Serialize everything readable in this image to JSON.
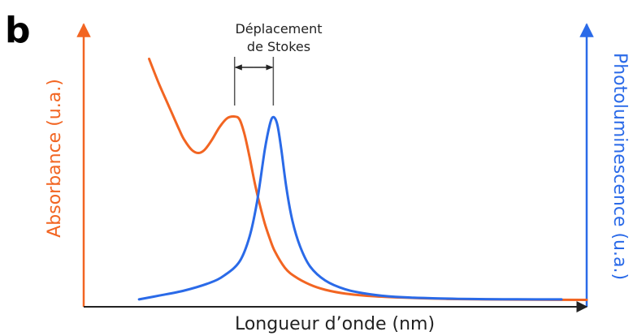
{
  "chart_data": {
    "type": "line",
    "panel_label": "b",
    "xlabel": "Longueur d’onde (nm)",
    "ylabel_left": "Absorbance (u.a.)",
    "ylabel_right": "Photoluminescence (u.a.)",
    "annotation": {
      "line1": "Déplacement",
      "line2": "de Stokes"
    },
    "xlim": [
      0,
      100
    ],
    "ylim": [
      0,
      100
    ],
    "grid": false,
    "colors": {
      "absorbance": "#f26522",
      "photoluminescence": "#2a6ae8",
      "axis_x": "#222222"
    },
    "series": [
      {
        "key": "absorbance",
        "x": [
          13,
          15,
          17,
          19,
          20,
          21.5,
          22.8,
          24,
          25.5,
          27,
          28.5,
          30,
          31,
          32,
          33,
          34,
          35,
          36,
          37,
          38,
          40,
          42,
          45,
          48,
          52,
          58,
          65,
          72,
          80,
          90,
          100
        ],
        "y": [
          96,
          86,
          77,
          68,
          64,
          60,
          58.8,
          60,
          64,
          69,
          72.5,
          73.2,
          72,
          66,
          57,
          47,
          38.5,
          31,
          25,
          20,
          13.5,
          10,
          6.8,
          4.8,
          3.3,
          2.2,
          1.6,
          1.2,
          1.0,
          0.9,
          0.8
        ]
      },
      {
        "key": "photoluminescence",
        "x": [
          11,
          15,
          20,
          25,
          28,
          31,
          33,
          34.5,
          36,
          37,
          37.7,
          38.5,
          39.3,
          40.3,
          41.5,
          43,
          45,
          48,
          52,
          57,
          62,
          70,
          80,
          90,
          95
        ],
        "y": [
          1.0,
          2.5,
          4.5,
          7.5,
          10.5,
          16,
          26,
          40,
          60,
          70,
          73,
          70,
          60,
          45,
          32,
          22,
          14,
          8.5,
          5,
          3,
          2,
          1.4,
          1.1,
          1.0,
          1.0
        ]
      }
    ],
    "stokes_shift_markers": {
      "absorbance_peak_x": 30,
      "photoluminescence_peak_x": 37.7
    }
  }
}
